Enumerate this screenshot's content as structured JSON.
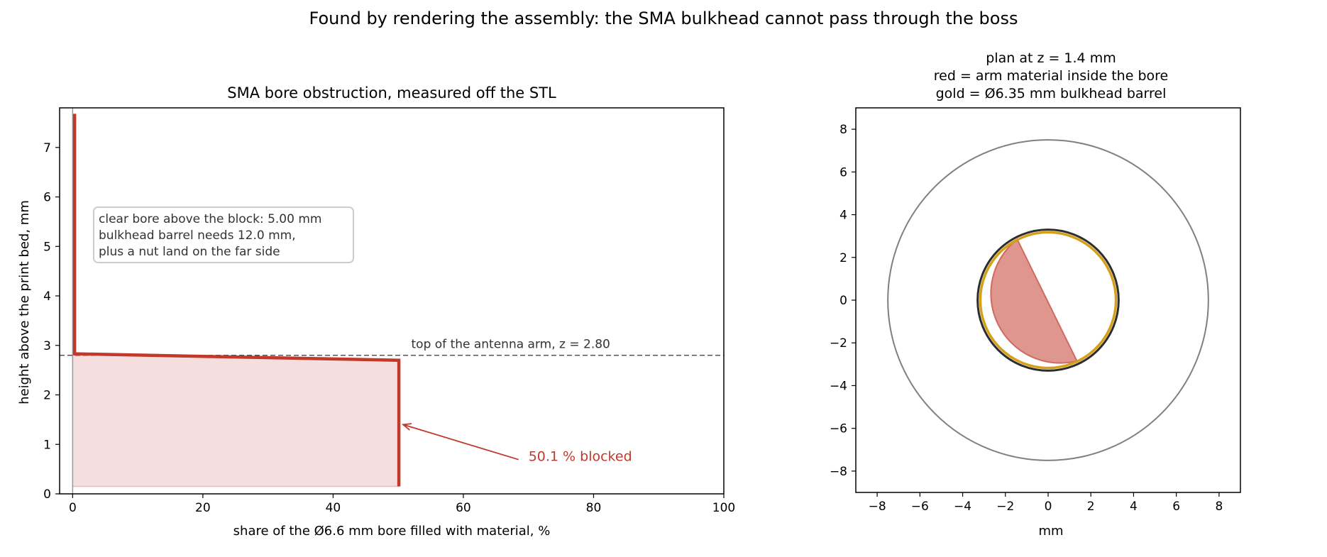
{
  "suptitle": "Found by rendering the assembly: the SMA bulkhead cannot pass through the boss",
  "colors": {
    "profile": "#c0392b",
    "fill": "#f5dede",
    "blocked_region": "#d9847b",
    "barrel": "#d4a017",
    "bore": "#2d2d2d",
    "outline": "#808080",
    "dashed": "#555555",
    "annotation": "#c0392b"
  },
  "chart_data": [
    {
      "type": "line",
      "title": "SMA bore obstruction, measured off the STL",
      "xlabel": "share of the Ø6.6 mm bore filled with material, %",
      "ylabel": "height above the print bed, mm",
      "xlim": [
        -2,
        100
      ],
      "ylim": [
        0,
        7.8
      ],
      "xticks": [
        0,
        20,
        40,
        60,
        80,
        100
      ],
      "yticks": [
        0,
        1,
        2,
        3,
        4,
        5,
        6,
        7
      ],
      "grid": false,
      "series": [
        {
          "x": [
            50.1,
            50.1,
            0.3,
            0.3
          ],
          "y": [
            0.15,
            2.7,
            2.83,
            7.68
          ]
        }
      ],
      "hline": {
        "y": 2.8,
        "label": "top of the antenna arm, z = 2.80"
      },
      "textbox": [
        "clear bore above the block: 5.00 mm",
        "bulkhead barrel needs 12.0 mm,",
        "plus a nut land on the far side"
      ],
      "arrow_annotation": {
        "text": "50.1 % blocked",
        "point": [
          50.1,
          1.4
        ],
        "text_at": [
          70,
          0.75
        ]
      }
    },
    {
      "type": "scatter",
      "title_lines": [
        "plan at z = 1.4 mm",
        "red = arm material inside the bore",
        "gold = Ø6.35 mm bulkhead barrel"
      ],
      "xlabel": "mm",
      "xlim": [
        -9,
        9
      ],
      "ylim": [
        -9,
        9
      ],
      "xticks": [
        -8,
        -6,
        -4,
        -2,
        0,
        2,
        4,
        6,
        8
      ],
      "yticks": [
        -8,
        -6,
        -4,
        -2,
        0,
        2,
        4,
        6,
        8
      ],
      "outer_circle_diameter": 15,
      "bore_diameter": 6.6,
      "barrel_diameter": 6.35,
      "blocked_chord": [
        [
          -1.45,
          2.85
        ],
        [
          1.35,
          -2.85
        ]
      ]
    }
  ]
}
